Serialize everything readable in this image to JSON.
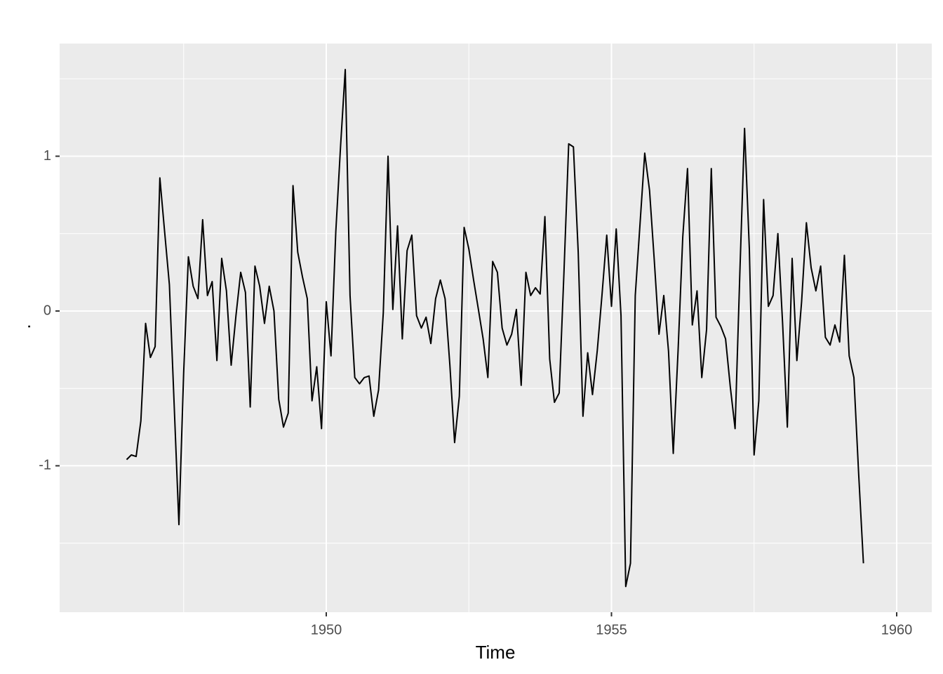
{
  "chart_data": {
    "type": "line",
    "x_label": "Time",
    "y_label": ".",
    "x": [
      1946.5,
      1946.583,
      1946.667,
      1946.75,
      1946.833,
      1946.917,
      1947,
      1947.083,
      1947.167,
      1947.25,
      1947.333,
      1947.417,
      1947.5,
      1947.583,
      1947.667,
      1947.75,
      1947.833,
      1947.917,
      1948,
      1948.083,
      1948.167,
      1948.25,
      1948.333,
      1948.417,
      1948.5,
      1948.583,
      1948.667,
      1948.75,
      1948.833,
      1948.917,
      1949,
      1949.083,
      1949.167,
      1949.25,
      1949.333,
      1949.417,
      1949.5,
      1949.583,
      1949.667,
      1949.75,
      1949.833,
      1949.917,
      1950,
      1950.083,
      1950.167,
      1950.25,
      1950.333,
      1950.417,
      1950.5,
      1950.583,
      1950.667,
      1950.75,
      1950.833,
      1950.917,
      1951,
      1951.083,
      1951.167,
      1951.25,
      1951.333,
      1951.417,
      1951.5,
      1951.583,
      1951.667,
      1951.75,
      1951.833,
      1951.917,
      1952,
      1952.083,
      1952.167,
      1952.25,
      1952.333,
      1952.417,
      1952.5,
      1952.583,
      1952.667,
      1952.75,
      1952.833,
      1952.917,
      1953,
      1953.083,
      1953.167,
      1953.25,
      1953.333,
      1953.417,
      1953.5,
      1953.583,
      1953.667,
      1953.75,
      1953.833,
      1953.917,
      1954,
      1954.083,
      1954.167,
      1954.25,
      1954.333,
      1954.417,
      1954.5,
      1954.583,
      1954.667,
      1954.75,
      1954.833,
      1954.917,
      1955,
      1955.083,
      1955.167,
      1955.25,
      1955.333,
      1955.417,
      1955.5,
      1955.583,
      1955.667,
      1955.75,
      1955.833,
      1955.917,
      1956,
      1956.083,
      1956.167,
      1956.25,
      1956.333,
      1956.417,
      1956.5,
      1956.583,
      1956.667,
      1956.75,
      1956.833,
      1956.917,
      1957,
      1957.083,
      1957.167,
      1957.25,
      1957.333,
      1957.417,
      1957.5,
      1957.583,
      1957.667,
      1957.75,
      1957.833,
      1957.917,
      1958,
      1958.083,
      1958.167,
      1958.25,
      1958.333,
      1958.417,
      1958.5,
      1958.583,
      1958.667,
      1958.75,
      1958.833,
      1958.917,
      1959,
      1959.083,
      1959.167,
      1959.25,
      1959.333,
      1959.417
    ],
    "series": [
      {
        "color": "#000000",
        "values": [
          -0.96,
          -0.93,
          -0.94,
          -0.71,
          -0.08,
          -0.3,
          -0.23,
          0.86,
          0.51,
          0.17,
          -0.6,
          -1.38,
          -0.4,
          0.35,
          0.16,
          0.08,
          0.59,
          0.1,
          0.19,
          -0.32,
          0.34,
          0.13,
          -0.35,
          -0.03,
          0.25,
          0.12,
          -0.62,
          0.29,
          0.16,
          -0.08,
          0.16,
          0.0,
          -0.57,
          -0.75,
          -0.66,
          0.81,
          0.38,
          0.22,
          0.08,
          -0.58,
          -0.36,
          -0.76,
          0.06,
          -0.29,
          0.51,
          1.06,
          1.56,
          0.1,
          -0.43,
          -0.47,
          -0.43,
          -0.42,
          -0.68,
          -0.51,
          -0.01,
          1.0,
          0.01,
          0.55,
          -0.18,
          0.39,
          0.49,
          -0.03,
          -0.11,
          -0.04,
          -0.21,
          0.08,
          0.2,
          0.08,
          -0.35,
          -0.85,
          -0.55,
          0.54,
          0.4,
          0.2,
          0.01,
          -0.18,
          -0.43,
          0.32,
          0.25,
          -0.11,
          -0.22,
          -0.15,
          0.01,
          -0.48,
          0.25,
          0.1,
          0.15,
          0.11,
          0.61,
          -0.31,
          -0.59,
          -0.53,
          0.25,
          1.08,
          1.06,
          0.38,
          -0.68,
          -0.27,
          -0.54,
          -0.26,
          0.1,
          0.49,
          0.03,
          0.53,
          -0.03,
          -1.78,
          -1.63,
          0.1,
          0.56,
          1.02,
          0.78,
          0.33,
          -0.15,
          0.1,
          -0.26,
          -0.92,
          -0.26,
          0.48,
          0.92,
          -0.09,
          0.13,
          -0.43,
          -0.12,
          0.92,
          -0.04,
          -0.1,
          -0.18,
          -0.49,
          -0.76,
          0.24,
          1.18,
          0.4,
          -0.93,
          -0.58,
          0.72,
          0.03,
          0.1,
          0.5,
          -0.08,
          -0.75,
          0.34,
          -0.32,
          0.06,
          0.57,
          0.28,
          0.13,
          0.29,
          -0.17,
          -0.22,
          -0.09,
          -0.2,
          0.36,
          -0.29,
          -0.43,
          -1.05,
          -1.63
        ]
      }
    ],
    "xlim": [
      1945.326,
      1960.615
    ],
    "xticks": [
      1950,
      1955,
      1960
    ],
    "x_minor_grid": [
      1947.5,
      1952.5,
      1957.5
    ],
    "ylim": [
      -1.946,
      1.728
    ],
    "yticks": [
      -1,
      0,
      1
    ],
    "y_minor_grid": [
      -1.5,
      -0.5,
      0.5,
      1.5
    ],
    "grid": true,
    "panel_color": "#ebebeb",
    "grid_color": "#ffffff"
  }
}
